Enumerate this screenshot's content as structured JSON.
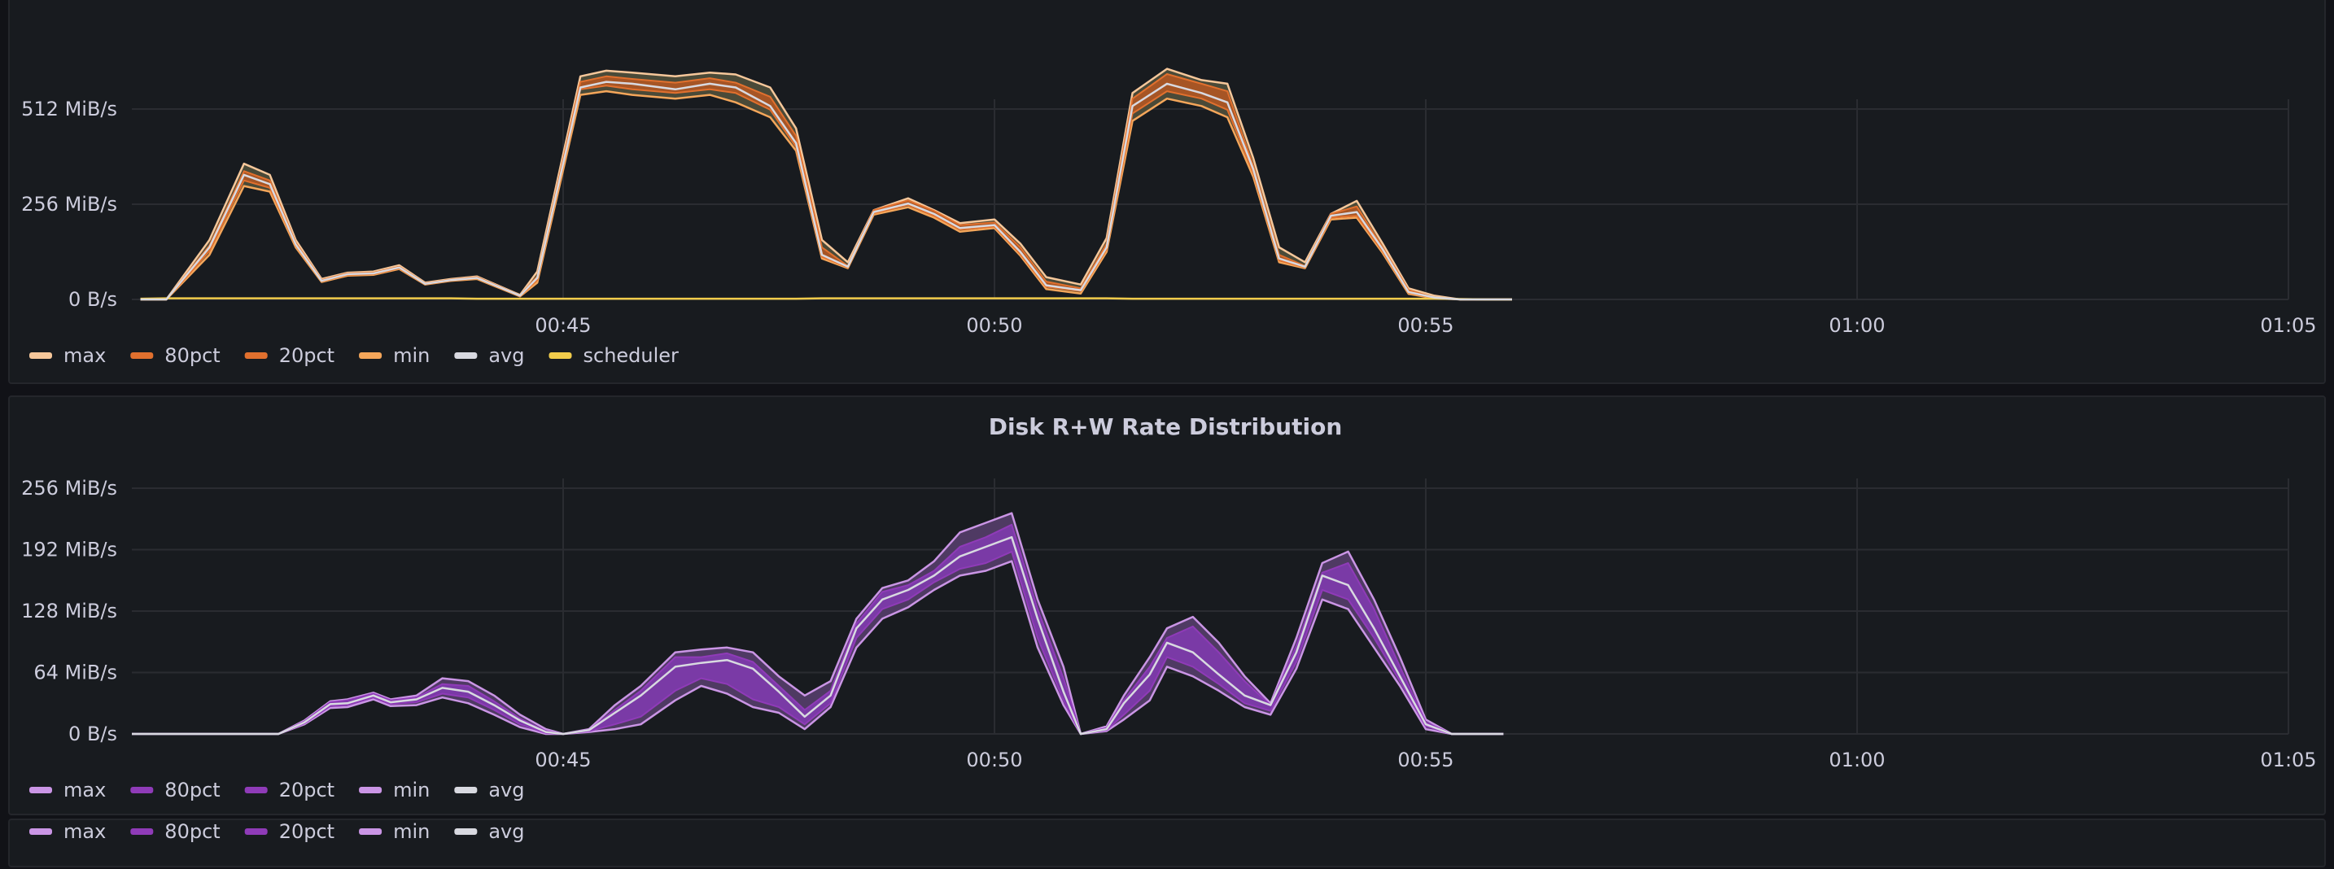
{
  "chart_data": [
    {
      "type": "area",
      "title": "",
      "x_labels": [
        "00:45",
        "00:50",
        "00:55",
        "01:00",
        "01:05"
      ],
      "y_ticks": [
        "0 B/s",
        "256 MiB/s",
        "512 MiB/s"
      ],
      "ylim_mib_s": [
        0,
        600
      ],
      "x_range": [
        "00:40",
        "01:05"
      ],
      "legend_position": "bottom-left",
      "legend": [
        "max",
        "80pct",
        "20pct",
        "min",
        "avg",
        "scheduler"
      ],
      "colors": {
        "max": "#f6c79a",
        "80pct": "#e1702e",
        "20pct": "#e1702e",
        "min": "#f4a65a",
        "avg": "#d8d9e0",
        "scheduler": "#f2cc4b",
        "band_outer": "#4a4a38",
        "band_inner": "#a65525"
      },
      "x_minutes": [
        40.1,
        40.4,
        40.9,
        41.3,
        41.6,
        41.9,
        42.2,
        42.5,
        42.8,
        43.1,
        43.4,
        43.7,
        44.0,
        44.5,
        44.7,
        45.2,
        45.5,
        45.8,
        46.3,
        46.7,
        47.0,
        47.4,
        47.7,
        48.0,
        48.3,
        48.6,
        49.0,
        49.3,
        49.6,
        50.0,
        50.3,
        50.6,
        51.0,
        51.3,
        51.6,
        52.0,
        52.4,
        52.7,
        53.0,
        53.3,
        53.6,
        53.9,
        54.2,
        54.5,
        54.8,
        55.1,
        55.4,
        55.7,
        56.0
      ],
      "series": [
        {
          "name": "max",
          "values": [
            0,
            0,
            160,
            365,
            335,
            160,
            55,
            72,
            75,
            92,
            45,
            55,
            62,
            12,
            75,
            600,
            615,
            610,
            600,
            610,
            605,
            570,
            460,
            160,
            100,
            240,
            272,
            240,
            205,
            215,
            150,
            60,
            40,
            165,
            555,
            620,
            590,
            580,
            380,
            140,
            100,
            230,
            265,
            150,
            30,
            10,
            0,
            0,
            0
          ]
        },
        {
          "name": "80pct",
          "values": [
            0,
            0,
            145,
            345,
            320,
            152,
            52,
            70,
            72,
            88,
            43,
            53,
            60,
            11,
            62,
            585,
            600,
            593,
            583,
            595,
            583,
            545,
            440,
            140,
            90,
            240,
            266,
            238,
            200,
            207,
            140,
            48,
            30,
            150,
            540,
            606,
            580,
            560,
            360,
            120,
            90,
            230,
            250,
            140,
            25,
            5,
            0,
            0,
            0
          ]
        },
        {
          "name": "avg",
          "values": [
            0,
            0,
            140,
            335,
            310,
            148,
            50,
            68,
            70,
            86,
            42,
            52,
            58,
            10,
            58,
            570,
            585,
            580,
            565,
            580,
            570,
            520,
            420,
            120,
            88,
            235,
            258,
            230,
            192,
            200,
            128,
            38,
            25,
            140,
            520,
            580,
            555,
            530,
            350,
            110,
            88,
            225,
            235,
            135,
            20,
            5,
            0,
            0,
            0
          ]
        },
        {
          "name": "20pct",
          "values": [
            0,
            0,
            130,
            320,
            300,
            145,
            49,
            66,
            68,
            84,
            41,
            51,
            57,
            9,
            52,
            565,
            575,
            565,
            555,
            565,
            555,
            510,
            410,
            115,
            86,
            232,
            254,
            225,
            188,
            196,
            122,
            34,
            22,
            135,
            500,
            560,
            540,
            510,
            340,
            105,
            86,
            220,
            225,
            130,
            18,
            4,
            0,
            0,
            0
          ]
        },
        {
          "name": "min",
          "values": [
            0,
            0,
            120,
            305,
            290,
            140,
            47,
            64,
            66,
            82,
            40,
            50,
            55,
            8,
            45,
            550,
            560,
            550,
            540,
            550,
            530,
            490,
            400,
            110,
            84,
            228,
            248,
            220,
            182,
            192,
            118,
            28,
            16,
            128,
            480,
            540,
            520,
            490,
            330,
            100,
            84,
            215,
            220,
            125,
            15,
            3,
            0,
            0,
            0
          ]
        },
        {
          "name": "scheduler",
          "values": [
            2,
            3,
            3,
            3,
            3,
            3,
            3,
            3,
            3,
            3,
            3,
            3,
            2,
            2,
            2,
            2,
            2,
            2,
            2,
            2,
            2,
            2,
            2,
            3,
            3,
            3,
            3,
            3,
            3,
            3,
            3,
            3,
            3,
            3,
            2,
            2,
            2,
            2,
            2,
            2,
            2,
            2,
            2,
            2,
            2,
            2,
            1,
            0,
            0
          ]
        }
      ]
    },
    {
      "type": "area",
      "title": "Disk R+W Rate Distribution",
      "x_labels": [
        "00:45",
        "00:50",
        "00:55",
        "01:00",
        "01:05"
      ],
      "y_ticks": [
        "0 B/s",
        "64 MiB/s",
        "128 MiB/s",
        "192 MiB/s",
        "256 MiB/s"
      ],
      "ylim_mib_s": [
        0,
        256
      ],
      "x_range": [
        "00:40",
        "01:05"
      ],
      "legend_position": "bottom-left",
      "legend": [
        "max",
        "80pct",
        "20pct",
        "min",
        "avg"
      ],
      "colors": {
        "max": "#ca95e5",
        "80pct": "#8f3bb8",
        "20pct": "#8f3bb8",
        "min": "#ca95e5",
        "avg": "#d8d9e0",
        "band_outer": "#4f3a63",
        "band_inner": "#7a3aa6"
      },
      "x_minutes": [
        40.0,
        41.7,
        42.0,
        42.3,
        42.5,
        42.8,
        43.0,
        43.3,
        43.6,
        43.9,
        44.2,
        44.5,
        44.8,
        45.0,
        45.3,
        45.6,
        45.9,
        46.3,
        46.6,
        46.9,
        47.2,
        47.5,
        47.8,
        48.1,
        48.4,
        48.7,
        49.0,
        49.3,
        49.6,
        49.9,
        50.2,
        50.5,
        50.8,
        51.0,
        51.3,
        51.5,
        51.8,
        52.0,
        52.3,
        52.6,
        52.9,
        53.2,
        53.5,
        53.8,
        54.1,
        54.4,
        54.7,
        55.0,
        55.3,
        55.6,
        55.9
      ],
      "series": [
        {
          "name": "max",
          "values": [
            0,
            0,
            14,
            34,
            36,
            43,
            36,
            40,
            58,
            55,
            40,
            20,
            5,
            0,
            5,
            30,
            50,
            85,
            88,
            90,
            85,
            60,
            40,
            55,
            120,
            152,
            160,
            180,
            210,
            220,
            230,
            140,
            70,
            0,
            8,
            40,
            80,
            110,
            122,
            95,
            60,
            32,
            100,
            178,
            190,
            140,
            80,
            15,
            0,
            0,
            0
          ]
        },
        {
          "name": "80pct",
          "values": [
            0,
            0,
            13,
            33,
            35,
            42,
            35,
            38,
            52,
            50,
            34,
            16,
            3,
            0,
            4,
            25,
            45,
            80,
            80,
            84,
            75,
            50,
            25,
            45,
            115,
            148,
            155,
            170,
            195,
            205,
            218,
            130,
            58,
            0,
            6,
            35,
            70,
            100,
            112,
            85,
            55,
            30,
            92,
            168,
            178,
            130,
            70,
            12,
            0,
            0,
            0
          ]
        },
        {
          "name": "avg",
          "values": [
            0,
            0,
            12,
            31,
            32,
            40,
            33,
            36,
            48,
            44,
            30,
            14,
            2,
            0,
            4,
            22,
            40,
            70,
            74,
            77,
            68,
            44,
            18,
            40,
            110,
            140,
            150,
            165,
            185,
            195,
            205,
            120,
            44,
            0,
            5,
            32,
            62,
            95,
            85,
            62,
            40,
            30,
            85,
            165,
            155,
            110,
            60,
            10,
            0,
            0,
            0
          ]
        },
        {
          "name": "20pct",
          "values": [
            0,
            0,
            11,
            29,
            30,
            38,
            31,
            33,
            42,
            38,
            25,
            10,
            1,
            0,
            3,
            10,
            18,
            45,
            58,
            52,
            36,
            28,
            10,
            32,
            100,
            130,
            140,
            158,
            172,
            178,
            190,
            100,
            35,
            0,
            4,
            20,
            45,
            80,
            70,
            52,
            32,
            24,
            75,
            150,
            140,
            100,
            55,
            8,
            0,
            0,
            0
          ]
        },
        {
          "name": "min",
          "values": [
            0,
            0,
            10,
            27,
            28,
            36,
            29,
            30,
            38,
            32,
            20,
            7,
            0,
            0,
            2,
            5,
            10,
            35,
            50,
            42,
            28,
            22,
            5,
            28,
            90,
            120,
            132,
            150,
            165,
            170,
            180,
            90,
            30,
            0,
            3,
            15,
            35,
            70,
            60,
            45,
            28,
            20,
            68,
            140,
            130,
            90,
            50,
            5,
            0,
            0,
            0
          ]
        }
      ]
    },
    {
      "type": "area",
      "title": "",
      "legend_position": "bottom-left",
      "legend": [
        "max",
        "80pct",
        "20pct",
        "min",
        "avg"
      ],
      "colors": {
        "max": "#ca95e5",
        "80pct": "#8f3bb8",
        "20pct": "#8f3bb8",
        "min": "#ca95e5",
        "avg": "#d8d9e0"
      }
    }
  ]
}
